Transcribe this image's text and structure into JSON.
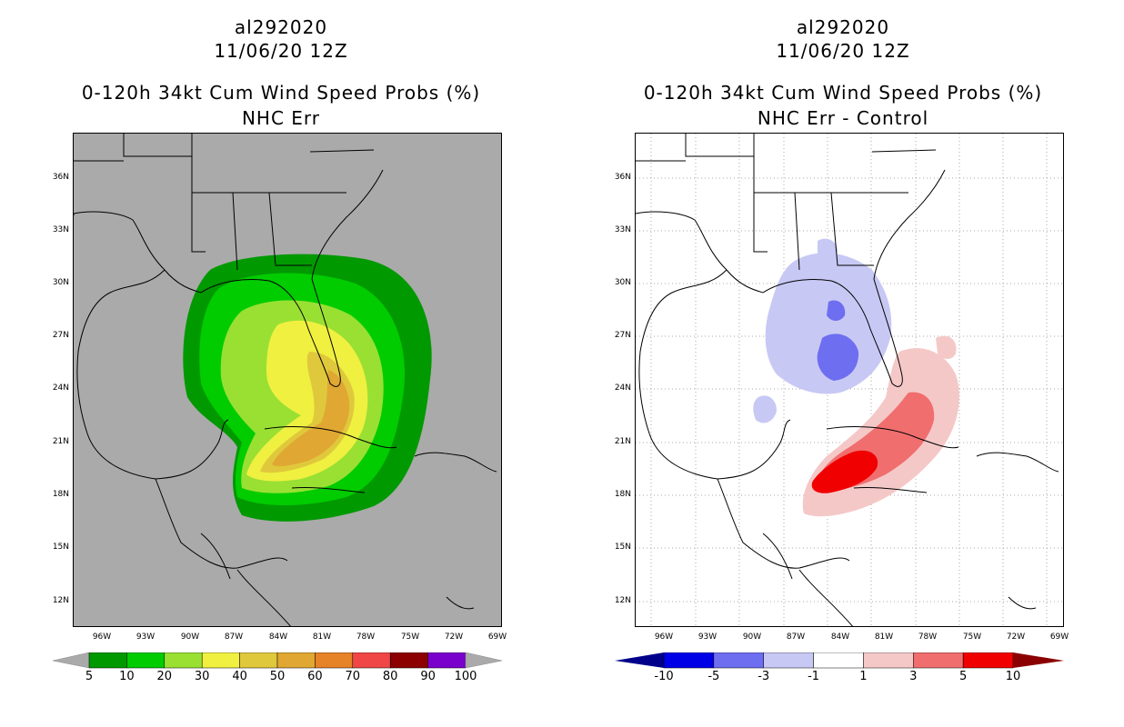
{
  "left": {
    "title_line1": "al292020",
    "title_line2": "11/06/20 12Z",
    "title_line3": "0-120h 34kt Cum Wind Speed Probs (%)",
    "title_line4": "NHC Err",
    "colorbar_labels": [
      "5",
      "10",
      "20",
      "30",
      "40",
      "50",
      "60",
      "70",
      "80",
      "90",
      "100"
    ],
    "colorbar_colors": [
      "#009900",
      "#00cc00",
      "#99e033",
      "#f0f040",
      "#e0c83c",
      "#e0a832",
      "#e68228",
      "#f04646",
      "#8c0000",
      "#7a00cc"
    ],
    "map_background": "#aaaaaa"
  },
  "right": {
    "title_line1": "al292020",
    "title_line2": "11/06/20 12Z",
    "title_line3": "0-120h 34kt Cum Wind Speed Probs (%)",
    "title_line4": "NHC Err - Control",
    "colorbar_labels": [
      "-10",
      "-5",
      "-3",
      "-1",
      "1",
      "3",
      "5",
      "10"
    ],
    "colorbar_colors": [
      "#0000e6",
      "#6e6ef0",
      "#c8c8f5",
      "#ffffff",
      "#f5c8c8",
      "#f06e6e",
      "#f00000"
    ],
    "map_background": "#ffffff"
  },
  "lat_labels": [
    "36N",
    "33N",
    "30N",
    "27N",
    "24N",
    "21N",
    "18N",
    "15N",
    "12N"
  ],
  "lon_labels": [
    "96W",
    "93W",
    "90W",
    "87W",
    "84W",
    "81W",
    "78W",
    "75W",
    "72W",
    "69W"
  ]
}
